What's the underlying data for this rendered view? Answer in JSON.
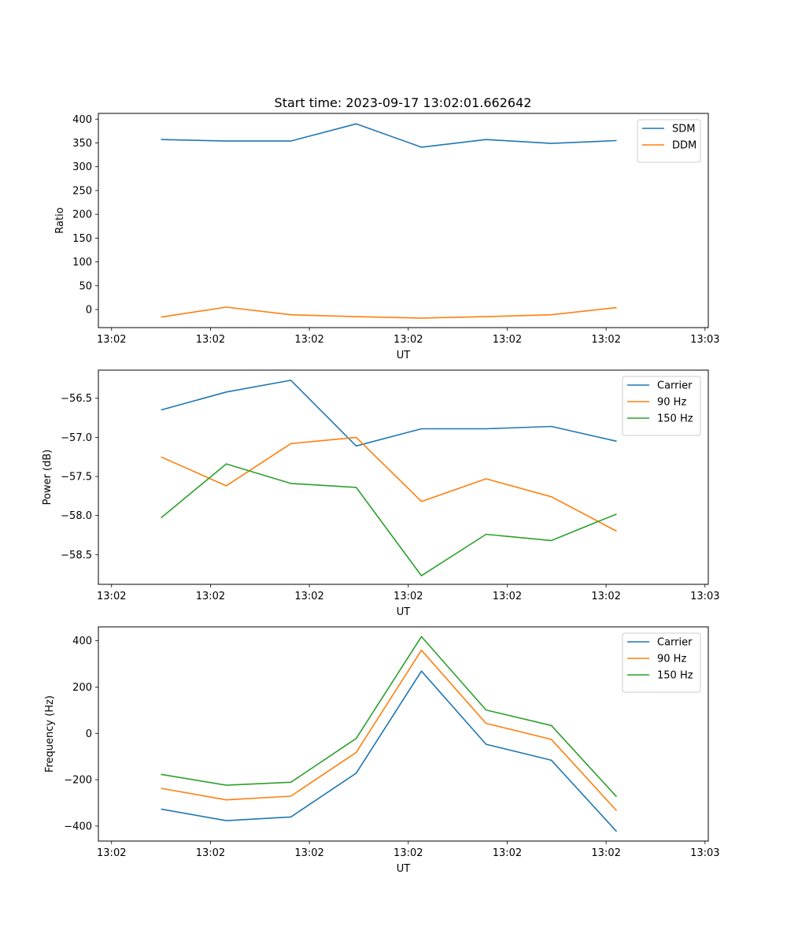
{
  "chart_data": [
    {
      "type": "line",
      "title": "Start time: 2023-09-17 13:02:01.662642",
      "xlabel": "UT",
      "ylabel": "Ratio",
      "x_tick_labels": [
        "13:02",
        "13:02",
        "13:02",
        "13:02",
        "13:02",
        "13:02",
        "13:03"
      ],
      "x_tick_values": [
        0,
        1.5,
        3,
        4.5,
        6,
        7.5,
        9
      ],
      "xlim": [
        -0.2,
        9.05
      ],
      "x": [
        0.75,
        1.74,
        2.72,
        3.71,
        4.7,
        5.68,
        6.67,
        7.66
      ],
      "ylim": [
        -38,
        412
      ],
      "yticks": [
        0,
        50,
        100,
        150,
        200,
        250,
        300,
        350,
        400
      ],
      "legend_position": "upper-right",
      "series": [
        {
          "name": "SDM",
          "color": "#1f77b4",
          "values": [
            357,
            354,
            354,
            390,
            341,
            357,
            349,
            355
          ]
        },
        {
          "name": "DDM",
          "color": "#ff7f0e",
          "values": [
            -16,
            5,
            -11,
            -15,
            -18,
            -15,
            -11,
            4
          ]
        }
      ]
    },
    {
      "type": "line",
      "title": "",
      "xlabel": "UT",
      "ylabel": "Power (dB)",
      "x_tick_labels": [
        "13:02",
        "13:02",
        "13:02",
        "13:02",
        "13:02",
        "13:02",
        "13:03"
      ],
      "x_tick_values": [
        0,
        1.5,
        3,
        4.5,
        6,
        7.5,
        9
      ],
      "xlim": [
        -0.2,
        9.05
      ],
      "x": [
        0.75,
        1.74,
        2.72,
        3.71,
        4.7,
        5.68,
        6.67,
        7.66
      ],
      "ylim": [
        -58.88,
        -56.14
      ],
      "yticks": [
        -58.5,
        -58.0,
        -57.5,
        -57.0,
        -56.5
      ],
      "ytick_labels": [
        "−58.5",
        "−58.0",
        "−57.5",
        "−57.0",
        "−56.5"
      ],
      "legend_position": "upper-right",
      "series": [
        {
          "name": "Carrier",
          "color": "#1f77b4",
          "values": [
            -56.65,
            -56.42,
            -56.27,
            -57.11,
            -56.89,
            -56.89,
            -56.86,
            -57.05
          ]
        },
        {
          "name": "90 Hz",
          "color": "#ff7f0e",
          "values": [
            -57.25,
            -57.62,
            -57.08,
            -57.0,
            -57.82,
            -57.53,
            -57.76,
            -58.2
          ]
        },
        {
          "name": "150 Hz",
          "color": "#2ca02c",
          "values": [
            -58.03,
            -57.34,
            -57.59,
            -57.64,
            -58.77,
            -58.24,
            -58.32,
            -57.98
          ]
        }
      ]
    },
    {
      "type": "line",
      "title": "",
      "xlabel": "UT",
      "ylabel": "Frequency (Hz)",
      "x_tick_labels": [
        "13:02",
        "13:02",
        "13:02",
        "13:02",
        "13:02",
        "13:02",
        "13:03"
      ],
      "x_tick_values": [
        0,
        1.5,
        3,
        4.5,
        6,
        7.5,
        9
      ],
      "xlim": [
        -0.2,
        9.05
      ],
      "x": [
        0.75,
        1.74,
        2.72,
        3.71,
        4.7,
        5.68,
        6.67,
        7.66
      ],
      "ylim": [
        -465,
        460
      ],
      "yticks": [
        -400,
        -200,
        0,
        200,
        400
      ],
      "ytick_labels": [
        "−400",
        "−200",
        "0",
        "200",
        "400"
      ],
      "legend_position": "upper-right",
      "series": [
        {
          "name": "Carrier",
          "color": "#1f77b4",
          "values": [
            -327,
            -377,
            -361,
            -172,
            269,
            -47,
            -116,
            -424
          ]
        },
        {
          "name": "90 Hz",
          "color": "#ff7f0e",
          "values": [
            -237,
            -287,
            -271,
            -82,
            359,
            43,
            -26,
            -334
          ]
        },
        {
          "name": "150 Hz",
          "color": "#2ca02c",
          "values": [
            -177,
            -224,
            -211,
            -22,
            418,
            101,
            34,
            -274
          ]
        }
      ]
    }
  ]
}
